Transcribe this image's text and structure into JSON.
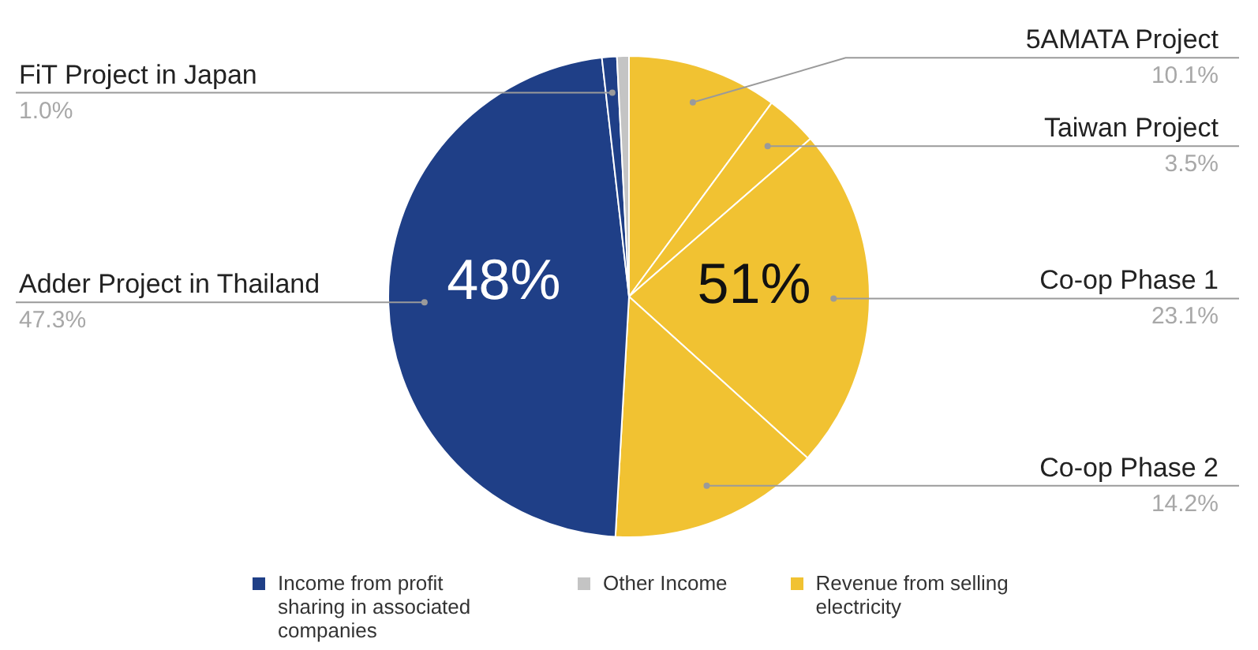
{
  "chart_data": {
    "type": "pie",
    "categories": [
      "5AMATA Project",
      "Taiwan Project",
      "Co-op Phase 1",
      "Co-op Phase 2",
      "Adder Project in Thailand",
      "FiT Project in Japan",
      null
    ],
    "values": [
      10.1,
      3.5,
      23.1,
      14.2,
      47.3,
      1.0,
      0.8
    ],
    "value_labels": [
      "10.1%",
      "3.5%",
      "23.1%",
      "14.2%",
      "47.3%",
      "1.0%",
      null
    ],
    "colors": [
      "#f1c232",
      "#f1c232",
      "#f1c232",
      "#f1c232",
      "#1f3f87",
      "#1f3f87",
      "#c4c4c4"
    ],
    "annotations": [
      "48%",
      "51%",
      "Income from profit sharing in associated companies",
      "Other Income",
      "Revenue from selling electricity"
    ]
  }
}
